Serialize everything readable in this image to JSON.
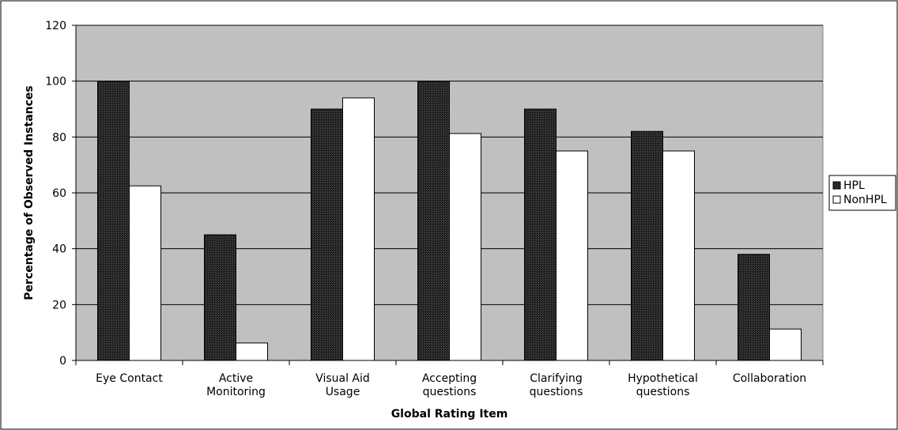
{
  "chart_data": {
    "type": "bar",
    "title": "",
    "xlabel": "Global Rating Item",
    "ylabel": "Percentage of Observed Instances",
    "ylim": [
      0,
      120
    ],
    "yticks": [
      0,
      20,
      40,
      60,
      80,
      100,
      120
    ],
    "grid": true,
    "legend_position": "right",
    "categories": [
      [
        "Eye Contact"
      ],
      [
        "Active",
        "Monitoring"
      ],
      [
        "Visual Aid",
        "Usage"
      ],
      [
        "Accepting",
        "questions"
      ],
      [
        "Clarifying",
        "questions"
      ],
      [
        "Hypothetical",
        "questions"
      ],
      [
        "Collaboration"
      ]
    ],
    "series": [
      {
        "name": "HPL",
        "values": [
          100,
          45,
          90,
          100,
          90,
          82,
          38
        ],
        "color": "#2b2b2b",
        "pattern": "dark-crosshatch"
      },
      {
        "name": "NonHPL",
        "values": [
          62.5,
          6.25,
          94,
          81.25,
          75,
          75,
          11.25
        ],
        "color": "#ffffff",
        "pattern": "solid"
      }
    ],
    "plot_background": "#c0c0c0"
  }
}
